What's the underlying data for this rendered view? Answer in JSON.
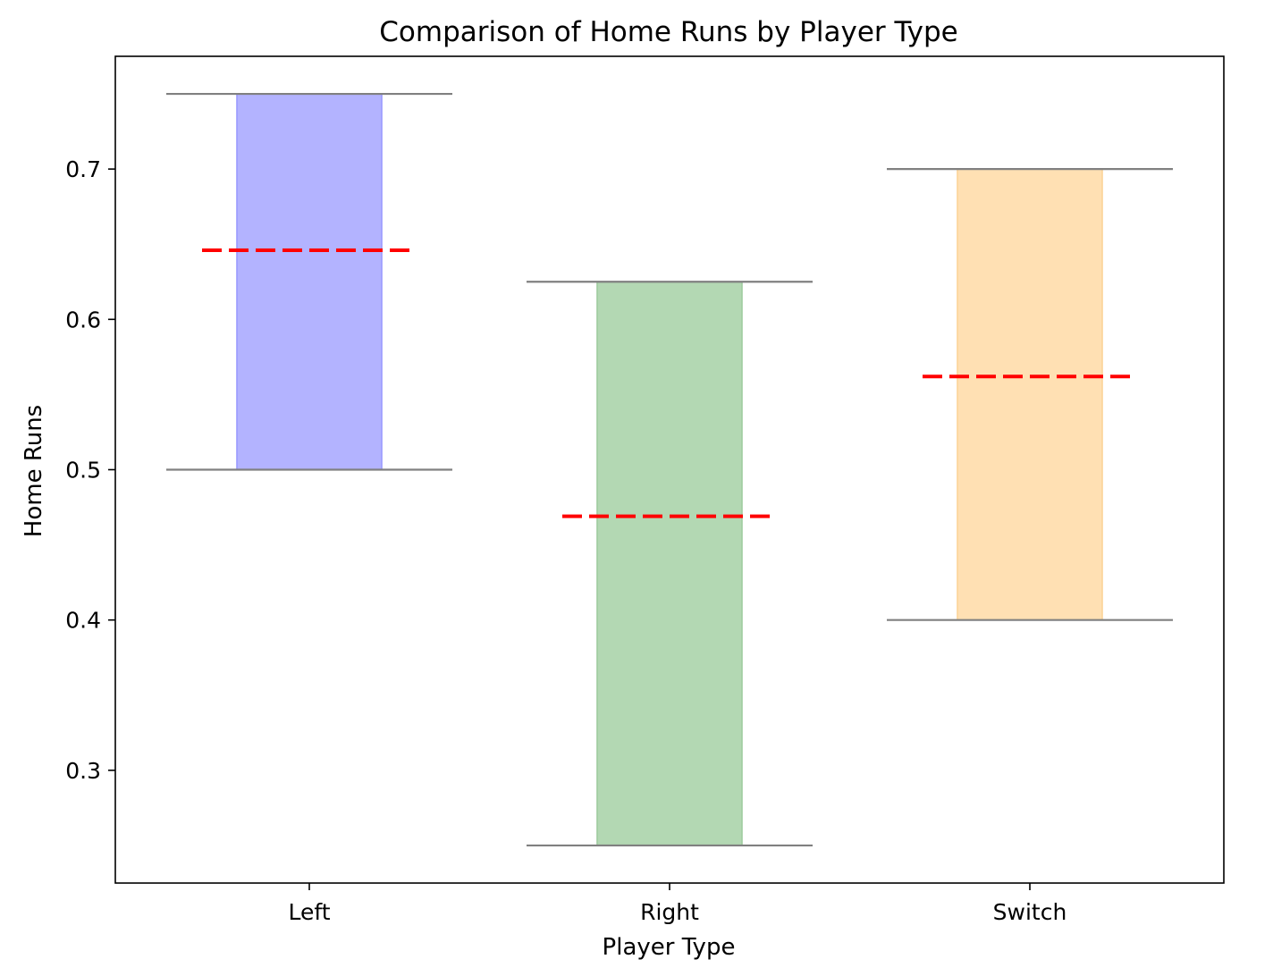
{
  "chart_data": {
    "type": "bar",
    "title": "Comparison of Home Runs by Player Type",
    "xlabel": "Player Type",
    "ylabel": "Home Runs",
    "categories": [
      "Left",
      "Right",
      "Switch"
    ],
    "series": [
      {
        "low": [
          0.5,
          0.25,
          0.4
        ],
        "high": [
          0.75,
          0.625,
          0.7
        ],
        "mean": [
          0.646,
          0.469,
          0.562
        ]
      }
    ],
    "ylim": [
      0.225,
      0.775
    ],
    "yticks": [
      0.3,
      0.4,
      0.5,
      0.6,
      0.7
    ],
    "ytick_labels": [
      "0.3",
      "0.4",
      "0.5",
      "0.6",
      "0.7"
    ],
    "grid": false,
    "colors": {
      "bars": [
        "#b3b3ff",
        "#b3d8b3",
        "#ffe0b3"
      ],
      "bar_edges": [
        "#9a9aff",
        "#9fcb9f",
        "#fbd398"
      ],
      "range_lines": "#808080",
      "mean_lines": "#ff0000",
      "axes": "#000000"
    }
  }
}
